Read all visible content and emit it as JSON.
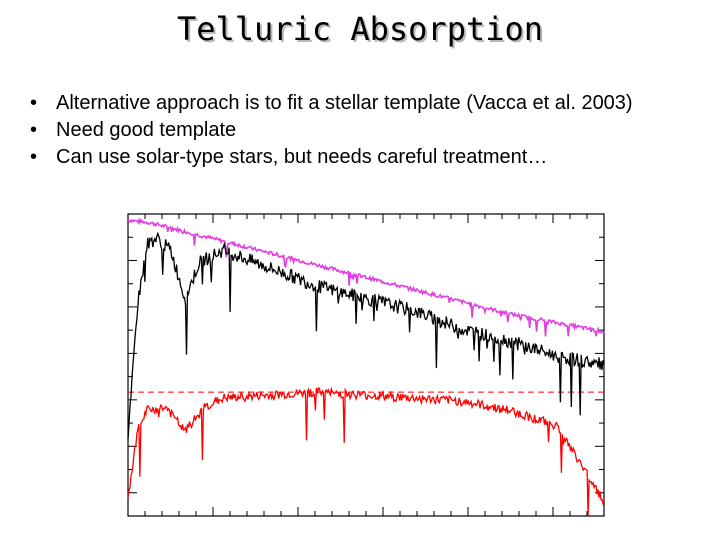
{
  "slide": {
    "title": "Telluric Absorption",
    "bullets": [
      "Alternative approach is to fit a stellar template (Vacca et al. 2003)",
      "Need good template",
      "Can use solar-type stars, but needs careful treatment…"
    ],
    "bullet_glyph": "•"
  },
  "colors": {
    "template": "#e040e0",
    "observed": "#000000",
    "corrected": "#ff0000",
    "reference_line": "#ff0000"
  },
  "chart_data": {
    "type": "line",
    "title": "",
    "xlabel": "",
    "ylabel": "",
    "x_tick_labels": [],
    "y_tick_labels": [],
    "grid": false,
    "legend": "none",
    "xlim": [
      0,
      1
    ],
    "ylim": [
      0,
      1
    ],
    "series": [
      {
        "color": "#e040e0",
        "x": [
          0.0,
          0.05,
          0.1,
          0.2,
          0.3,
          0.4,
          0.5,
          0.6,
          0.7,
          0.8,
          0.9,
          1.0
        ],
        "y": [
          0.98,
          0.97,
          0.95,
          0.91,
          0.87,
          0.83,
          0.79,
          0.75,
          0.71,
          0.67,
          0.64,
          0.61
        ]
      },
      {
        "color": "#000000",
        "x": [
          0.0,
          0.02,
          0.04,
          0.06,
          0.09,
          0.12,
          0.15,
          0.2,
          0.3,
          0.4,
          0.5,
          0.6,
          0.7,
          0.75,
          0.8,
          0.9,
          1.0
        ],
        "y": [
          0.25,
          0.7,
          0.9,
          0.92,
          0.88,
          0.72,
          0.84,
          0.88,
          0.82,
          0.76,
          0.72,
          0.68,
          0.62,
          0.6,
          0.58,
          0.53,
          0.5
        ]
      },
      {
        "color": "#ff0000",
        "x": [
          0.0,
          0.02,
          0.04,
          0.08,
          0.12,
          0.16,
          0.2,
          0.3,
          0.4,
          0.5,
          0.6,
          0.7,
          0.8,
          0.9,
          1.0
        ],
        "y": [
          0.05,
          0.28,
          0.35,
          0.36,
          0.28,
          0.36,
          0.39,
          0.4,
          0.41,
          0.4,
          0.39,
          0.38,
          0.35,
          0.3,
          0.05
        ]
      }
    ],
    "reference_line": {
      "y": 0.41,
      "style": "dashed",
      "color": "#ff0000"
    }
  }
}
